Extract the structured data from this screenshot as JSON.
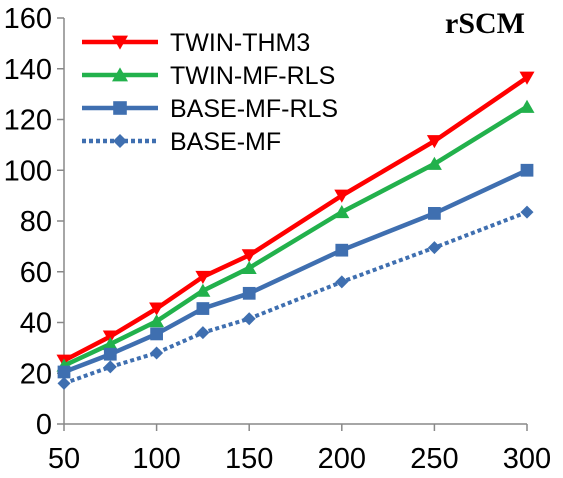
{
  "chart_data": {
    "type": "line",
    "title": "rSCM",
    "xlabel": "",
    "ylabel": "",
    "x": [
      50,
      75,
      100,
      125,
      150,
      200,
      250,
      300
    ],
    "x_ticks": [
      "50",
      "100",
      "150",
      "200",
      "250",
      "300"
    ],
    "y_ticks": [
      "0",
      "20",
      "40",
      "60",
      "80",
      "100",
      "120",
      "140",
      "160"
    ],
    "xlim": [
      50,
      300
    ],
    "ylim": [
      0,
      160
    ],
    "grid": false,
    "legend_position": "top-left",
    "series": [
      {
        "name": "TWIN-THM3",
        "color": "#ff0000",
        "marker": "triangle-down",
        "dash": "solid",
        "values": [
          25,
          34.5,
          45.5,
          58,
          66.5,
          90,
          111.5,
          136.5
        ]
      },
      {
        "name": "TWIN-MF-RLS",
        "color": "#22b14c",
        "marker": "triangle-up",
        "dash": "solid",
        "values": [
          23,
          31.5,
          40.5,
          52.5,
          61.5,
          83.5,
          102.5,
          125
        ]
      },
      {
        "name": "BASE-MF-RLS",
        "color": "#3f6fb0",
        "marker": "square",
        "dash": "solid",
        "values": [
          20.5,
          27.5,
          35.5,
          45.5,
          51.5,
          68.5,
          83,
          100
        ]
      },
      {
        "name": "BASE-MF",
        "color": "#3f6fb0",
        "marker": "diamond",
        "dash": "dotted",
        "values": [
          16,
          22.5,
          28,
          36,
          41.5,
          56,
          69.5,
          83.5
        ]
      }
    ]
  }
}
